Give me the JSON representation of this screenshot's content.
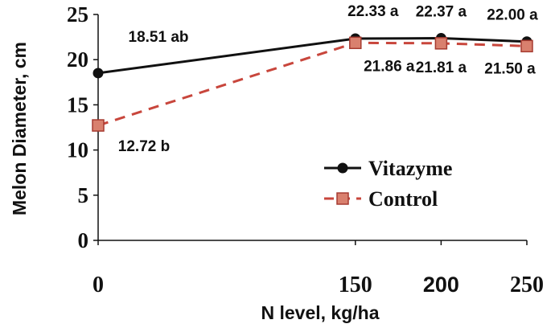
{
  "chart_data": {
    "type": "line",
    "x": [
      0,
      150,
      200,
      250
    ],
    "x_tick_labels": [
      "0",
      "150",
      "200",
      "250"
    ],
    "y_ticks": [
      0,
      5,
      10,
      15,
      20,
      25
    ],
    "ylim": [
      0,
      25
    ],
    "xlabel": "N level, kg/ha",
    "ylabel": "Melon Diameter, cm",
    "grid": false,
    "legend_position": "lower-right",
    "series": [
      {
        "name": "Vitazyme",
        "values": [
          18.51,
          22.33,
          22.37,
          22.0
        ],
        "labels": [
          "18.51 ab",
          "22.33 a",
          "22.37 a",
          "22.00 a"
        ],
        "color": "#111111",
        "marker": "circle",
        "line_style": "solid"
      },
      {
        "name": "Control",
        "values": [
          12.72,
          21.86,
          21.81,
          21.5
        ],
        "labels": [
          "12.72 b",
          "21.86 a",
          "21.81 a",
          "21.50 a"
        ],
        "color": "#c8463c",
        "marker": "square",
        "line_style": "dashed"
      }
    ]
  }
}
